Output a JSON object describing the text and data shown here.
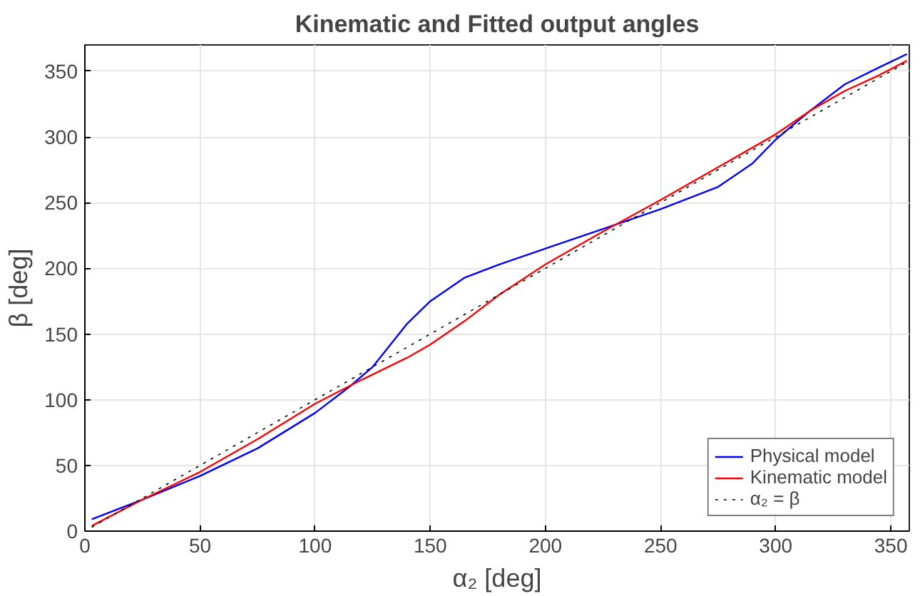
{
  "chart_data": {
    "type": "line",
    "title": "Kinematic and Fitted output angles",
    "xlabel": "α₂ [deg]",
    "ylabel": "β [deg]",
    "xlim": [
      0,
      358
    ],
    "ylim": [
      0,
      370
    ],
    "xticks": [
      0,
      50,
      100,
      150,
      200,
      250,
      300,
      350
    ],
    "yticks": [
      0,
      50,
      100,
      150,
      200,
      250,
      300,
      350
    ],
    "grid": true,
    "legend": "bottom right",
    "series": [
      {
        "name": "Physical model",
        "color": "#0000ff",
        "x": [
          3,
          25,
          50,
          75,
          100,
          115,
          125,
          140,
          150,
          165,
          180,
          200,
          225,
          250,
          275,
          290,
          300,
          315,
          330,
          345,
          357
        ],
        "values": [
          9,
          24,
          42,
          63,
          90,
          110,
          125,
          158,
          175,
          193,
          203,
          215,
          230,
          245,
          262,
          280,
          298,
          320,
          340,
          353,
          363
        ]
      },
      {
        "name": "Kinematic model",
        "color": "#ff0000",
        "x": [
          3,
          25,
          50,
          75,
          100,
          120,
          140,
          150,
          165,
          180,
          200,
          225,
          250,
          275,
          300,
          315,
          330,
          345,
          357
        ],
        "values": [
          4,
          24,
          45,
          70,
          97,
          115,
          132,
          142,
          160,
          180,
          203,
          228,
          252,
          277,
          302,
          320,
          335,
          347,
          358
        ]
      },
      {
        "name": "α₂ = β",
        "color": "#000000",
        "line_style": "dotted",
        "x": [
          3,
          357
        ],
        "values": [
          3,
          357
        ]
      }
    ]
  }
}
